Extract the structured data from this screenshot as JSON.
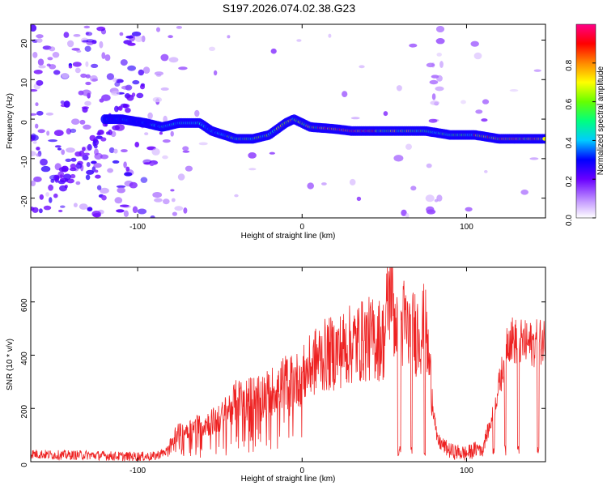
{
  "title": "S197.2026.074.02.38.G23",
  "chart_data": [
    {
      "type": "heatmap",
      "name": "spectrogram",
      "xlabel": "Height of straight line (km)",
      "ylabel": "Frequency (Hz)",
      "xlim": [
        -165,
        148
      ],
      "ylim": [
        -25,
        24
      ],
      "xticks": [
        -100,
        0,
        100
      ],
      "yticks": [
        -20,
        -10,
        0,
        10,
        20
      ],
      "colorbar": {
        "label": "Normalized spectral amplitude",
        "range": [
          0,
          1
        ],
        "ticks": [
          0.0,
          0.2,
          0.4,
          0.6,
          0.8
        ]
      },
      "ridge": {
        "description": "dominant frequency track",
        "points": [
          [
            -110,
            0
          ],
          [
            -95,
            -1
          ],
          [
            -85,
            -2
          ],
          [
            -75,
            -1
          ],
          [
            -62,
            -1
          ],
          [
            -55,
            -3
          ],
          [
            -40,
            -5
          ],
          [
            -30,
            -5
          ],
          [
            -20,
            -4
          ],
          [
            -10,
            -1
          ],
          [
            -5,
            0
          ],
          [
            5,
            -2
          ],
          [
            20,
            -2.5
          ],
          [
            30,
            -3
          ],
          [
            45,
            -3
          ],
          [
            60,
            -3
          ],
          [
            75,
            -3
          ],
          [
            90,
            -4
          ],
          [
            105,
            -4
          ],
          [
            120,
            -5
          ],
          [
            135,
            -5
          ],
          [
            148,
            -5
          ]
        ]
      }
    },
    {
      "type": "line",
      "name": "snr",
      "xlabel": "Height of straight line (km)",
      "ylabel": "SNR (10 * v/v)",
      "xlim": [
        -165,
        148
      ],
      "ylim": [
        0,
        730
      ],
      "xticks": [
        -100,
        0,
        100
      ],
      "yticks": [
        0,
        200,
        400,
        600
      ],
      "color": "#ee2222",
      "series": [
        {
          "name": "SNR",
          "x": [
            -165,
            -150,
            -130,
            -110,
            -90,
            -82,
            -78,
            -70,
            -60,
            -50,
            -40,
            -30,
            -20,
            -10,
            -5,
            0,
            10,
            20,
            30,
            40,
            50,
            54,
            56,
            60,
            62,
            65,
            75,
            80,
            82,
            90,
            100,
            110,
            115,
            122,
            125,
            130,
            140,
            148
          ],
          "values": [
            30,
            25,
            25,
            20,
            20,
            40,
            100,
            120,
            140,
            160,
            230,
            240,
            260,
            300,
            300,
            320,
            390,
            410,
            440,
            460,
            460,
            700,
            550,
            500,
            520,
            480,
            500,
            200,
            80,
            40,
            30,
            60,
            150,
            350,
            470,
            450,
            440,
            460
          ]
        }
      ]
    }
  ]
}
